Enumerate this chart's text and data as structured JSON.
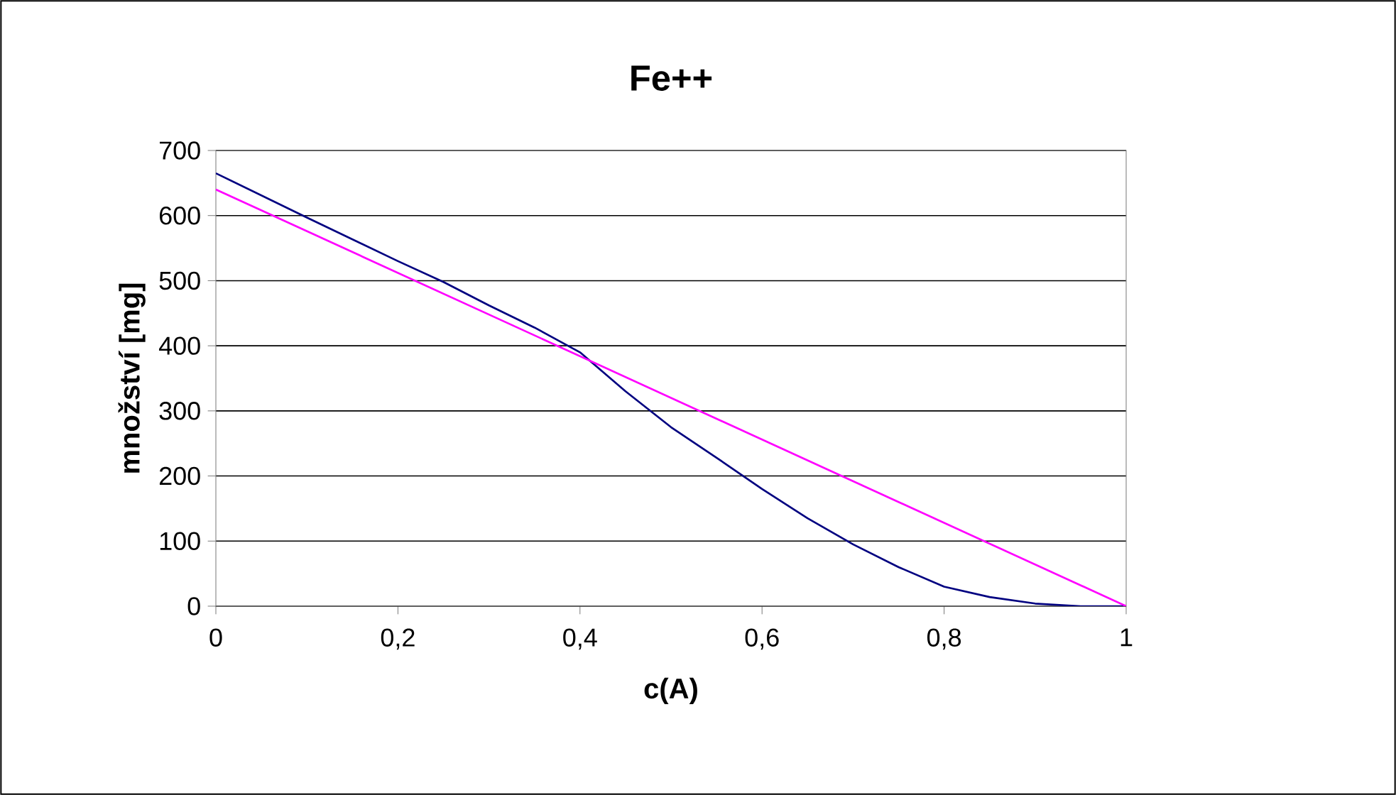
{
  "chart_data": {
    "type": "line",
    "title": "Fe++",
    "xlabel": "c(A)",
    "ylabel": "množství [mg]",
    "xlim": [
      0,
      1
    ],
    "xticks": [
      {
        "value": 0,
        "label": "0"
      },
      {
        "value": 0.2,
        "label": "0,2"
      },
      {
        "value": 0.4,
        "label": "0,4"
      },
      {
        "value": 0.6,
        "label": "0,6"
      },
      {
        "value": 0.8,
        "label": "0,8"
      },
      {
        "value": 1,
        "label": "1"
      }
    ],
    "ylim": [
      0,
      700
    ],
    "yticks": [
      0,
      100,
      200,
      300,
      400,
      500,
      600,
      700
    ],
    "grid": "y",
    "series": [
      {
        "color": "#000080",
        "x": [
          0,
          0.1,
          0.2,
          0.25,
          0.3,
          0.35,
          0.4,
          0.45,
          0.5,
          0.55,
          0.6,
          0.65,
          0.7,
          0.75,
          0.8,
          0.85,
          0.9,
          0.95,
          1
        ],
        "values": [
          665,
          597,
          530,
          498,
          462,
          428,
          390,
          330,
          275,
          228,
          180,
          135,
          95,
          60,
          30,
          14,
          4,
          0,
          0
        ]
      },
      {
        "color": "#ff00ff",
        "x": [
          0,
          1
        ],
        "values": [
          640,
          0
        ]
      }
    ]
  }
}
